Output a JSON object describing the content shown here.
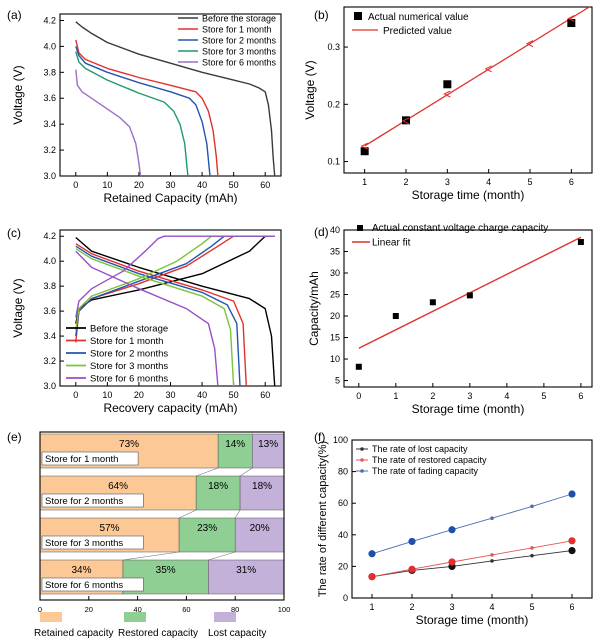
{
  "chart_data": [
    {
      "panel": "(a)",
      "type": "line",
      "xlabel": "Retained Capacity (mAh)",
      "ylabel": "Voltage (V)",
      "xlim": [
        -5,
        65
      ],
      "ylim": [
        3.0,
        4.25
      ],
      "xticks": [
        0,
        10,
        20,
        30,
        40,
        50,
        60
      ],
      "yticks": [
        3.0,
        3.2,
        3.4,
        3.6,
        3.8,
        4.0,
        4.2
      ],
      "legend_position": "top-right",
      "series": [
        {
          "name": "Before the storage",
          "color": "#3a3a3a",
          "points": [
            [
              0,
              4.19
            ],
            [
              2,
              4.15
            ],
            [
              5,
              4.1
            ],
            [
              10,
              4.03
            ],
            [
              20,
              3.94
            ],
            [
              30,
              3.87
            ],
            [
              40,
              3.8
            ],
            [
              50,
              3.74
            ],
            [
              55,
              3.71
            ],
            [
              58,
              3.68
            ],
            [
              60,
              3.65
            ],
            [
              61,
              3.55
            ],
            [
              62,
              3.35
            ],
            [
              62.5,
              3.15
            ],
            [
              63,
              3.0
            ]
          ]
        },
        {
          "name": "Store for 1 month",
          "color": "#e0312c",
          "points": [
            [
              0,
              4.05
            ],
            [
              1,
              3.95
            ],
            [
              3,
              3.9
            ],
            [
              10,
              3.83
            ],
            [
              20,
              3.76
            ],
            [
              30,
              3.7
            ],
            [
              38,
              3.65
            ],
            [
              40,
              3.6
            ],
            [
              42,
              3.5
            ],
            [
              43.5,
              3.35
            ],
            [
              44.5,
              3.15
            ],
            [
              45,
              3.0
            ]
          ]
        },
        {
          "name": "Store for 2 months",
          "color": "#2255b0",
          "points": [
            [
              0,
              4.0
            ],
            [
              1,
              3.93
            ],
            [
              3,
              3.87
            ],
            [
              10,
              3.8
            ],
            [
              20,
              3.72
            ],
            [
              30,
              3.65
            ],
            [
              36,
              3.6
            ],
            [
              38,
              3.55
            ],
            [
              40,
              3.42
            ],
            [
              41.5,
              3.25
            ],
            [
              42.5,
              3.0
            ]
          ]
        },
        {
          "name": "Store for 3 months",
          "color": "#1f9a6a",
          "points": [
            [
              0,
              3.96
            ],
            [
              1,
              3.88
            ],
            [
              3,
              3.83
            ],
            [
              10,
              3.74
            ],
            [
              20,
              3.64
            ],
            [
              28,
              3.57
            ],
            [
              31,
              3.5
            ],
            [
              33,
              3.4
            ],
            [
              34.5,
              3.25
            ],
            [
              35.5,
              3.0
            ]
          ]
        },
        {
          "name": "Store for 6 months",
          "color": "#9a6fc7",
          "points": [
            [
              0,
              3.82
            ],
            [
              0.5,
              3.7
            ],
            [
              2,
              3.65
            ],
            [
              8,
              3.55
            ],
            [
              14,
              3.45
            ],
            [
              17,
              3.38
            ],
            [
              19,
              3.25
            ],
            [
              20,
              3.1
            ],
            [
              20.5,
              3.0
            ]
          ]
        }
      ]
    },
    {
      "panel": "(b)",
      "type": "scatter",
      "xlabel": "Storage time (month)",
      "ylabel": "Voltage (V)",
      "xlim": [
        0.5,
        6.5
      ],
      "ylim": [
        0.08,
        0.37
      ],
      "xticks": [
        1,
        2,
        3,
        4,
        5,
        6
      ],
      "yticks": [
        0.1,
        0.2,
        0.3
      ],
      "legend_position": "top-left",
      "series": [
        {
          "name": "Actual numerical value",
          "color": "#000000",
          "x": [
            1,
            2,
            3,
            6
          ],
          "y": [
            0.118,
            0.172,
            0.235,
            0.342
          ]
        },
        {
          "name": "Predicted value",
          "color": "#e0312c",
          "x": [
            1,
            2,
            3,
            4,
            5,
            6
          ],
          "y": [
            0.127,
            0.171,
            0.218,
            0.262,
            0.306,
            0.35
          ]
        }
      ]
    },
    {
      "panel": "(c)",
      "type": "line",
      "xlabel": "Recovery capacity (mAh)",
      "ylabel": "Voltage (V)",
      "xlim": [
        -5,
        65
      ],
      "ylim": [
        3.0,
        4.25
      ],
      "xticks": [
        0,
        10,
        20,
        30,
        40,
        50,
        60
      ],
      "yticks": [
        3.0,
        3.2,
        3.4,
        3.6,
        3.8,
        4.0,
        4.2
      ],
      "legend_position": "bottom-left",
      "series": [
        {
          "name": "Before the storage",
          "color": "#000000",
          "dis": [
            [
              0,
              4.19
            ],
            [
              5,
              4.08
            ],
            [
              20,
              3.95
            ],
            [
              40,
              3.8
            ],
            [
              55,
              3.7
            ],
            [
              60,
              3.62
            ],
            [
              62,
              3.4
            ],
            [
              63,
              3.0
            ]
          ],
          "chg": [
            [
              0,
              3.5
            ],
            [
              1,
              3.62
            ],
            [
              5,
              3.69
            ],
            [
              20,
              3.77
            ],
            [
              40,
              3.9
            ],
            [
              55,
              4.08
            ],
            [
              60,
              4.2
            ],
            [
              63,
              4.2
            ]
          ]
        },
        {
          "name": "Store for 1 month",
          "color": "#e0312c",
          "dis": [
            [
              0,
              4.14
            ],
            [
              5,
              4.06
            ],
            [
              20,
              3.92
            ],
            [
              40,
              3.77
            ],
            [
              50,
              3.68
            ],
            [
              53,
              3.5
            ],
            [
              54,
              3.0
            ]
          ],
          "chg": [
            [
              0,
              3.35
            ],
            [
              1,
              3.6
            ],
            [
              5,
              3.7
            ],
            [
              20,
              3.82
            ],
            [
              35,
              3.96
            ],
            [
              45,
              4.12
            ],
            [
              50,
              4.2
            ],
            [
              63,
              4.2
            ]
          ]
        },
        {
          "name": "Store for 2 months",
          "color": "#2255b0",
          "dis": [
            [
              0,
              4.12
            ],
            [
              5,
              4.04
            ],
            [
              20,
              3.9
            ],
            [
              40,
              3.75
            ],
            [
              48,
              3.65
            ],
            [
              51,
              3.5
            ],
            [
              52,
              3.0
            ]
          ],
          "chg": [
            [
              0,
              3.4
            ],
            [
              1,
              3.6
            ],
            [
              5,
              3.7
            ],
            [
              20,
              3.84
            ],
            [
              35,
              3.98
            ],
            [
              43,
              4.12
            ],
            [
              47,
              4.2
            ],
            [
              63,
              4.2
            ]
          ]
        },
        {
          "name": "Store for 3 months",
          "color": "#7cc23a",
          "dis": [
            [
              0,
              4.1
            ],
            [
              5,
              4.02
            ],
            [
              20,
              3.88
            ],
            [
              40,
              3.72
            ],
            [
              47,
              3.62
            ],
            [
              49,
              3.45
            ],
            [
              50,
              3.0
            ]
          ],
          "chg": [
            [
              0,
              3.45
            ],
            [
              1,
              3.62
            ],
            [
              5,
              3.72
            ],
            [
              20,
              3.86
            ],
            [
              32,
              4.0
            ],
            [
              40,
              4.14
            ],
            [
              43,
              4.2
            ],
            [
              63,
              4.2
            ]
          ]
        },
        {
          "name": "Store for 6 months",
          "color": "#9a4fc7",
          "dis": [
            [
              0,
              4.08
            ],
            [
              5,
              3.95
            ],
            [
              20,
              3.78
            ],
            [
              35,
              3.62
            ],
            [
              42,
              3.5
            ],
            [
              44,
              3.3
            ],
            [
              45,
              3.0
            ]
          ],
          "chg": [
            [
              0,
              3.55
            ],
            [
              1,
              3.68
            ],
            [
              5,
              3.78
            ],
            [
              15,
              3.92
            ],
            [
              22,
              4.08
            ],
            [
              26,
              4.18
            ],
            [
              28,
              4.2
            ],
            [
              63,
              4.2
            ]
          ]
        }
      ]
    },
    {
      "panel": "(d)",
      "type": "scatter",
      "xlabel": "Storage time (month)",
      "ylabel": "Capacity/mAh",
      "xlim": [
        -0.4,
        6.3
      ],
      "ylim": [
        3.5,
        40
      ],
      "xticks": [
        0,
        1,
        2,
        3,
        4,
        5,
        6
      ],
      "yticks": [
        5,
        10,
        15,
        20,
        25,
        30,
        35,
        40
      ],
      "legend_position": "top-left",
      "series": [
        {
          "name": "Actual constant voltage charge capacity",
          "color": "#000000",
          "x": [
            0,
            1,
            2,
            3,
            6
          ],
          "y": [
            8.2,
            20.0,
            23.2,
            24.8,
            37.2
          ]
        },
        {
          "name": "Linear fit",
          "color": "#e0312c",
          "x": [
            0,
            6
          ],
          "y": [
            12.5,
            38.3
          ]
        }
      ]
    },
    {
      "panel": "(e)",
      "type": "bar",
      "orientation": "horizontal-stacked",
      "xlim": [
        0,
        100
      ],
      "xticks": [
        0,
        20,
        40,
        60,
        80,
        100
      ],
      "categories": [
        "Store for 1 month",
        "Store for 2 months",
        "Store for 3 months",
        "Store for 6 months"
      ],
      "series": [
        {
          "name": "Retained capacity",
          "color": "#fcc996",
          "values": [
            73,
            64,
            57,
            34
          ],
          "labels": [
            "73%",
            "64%",
            "57%",
            "34%"
          ]
        },
        {
          "name": "Restored capacity",
          "color": "#8fcf94",
          "values": [
            14,
            18,
            23,
            35
          ],
          "labels": [
            "14%",
            "18%",
            "23%",
            "35%"
          ]
        },
        {
          "name": "Lost capacity",
          "color": "#c3b1d9",
          "values": [
            13,
            18,
            20,
            31
          ],
          "labels": [
            "13%",
            "18%",
            "20%",
            "31%"
          ]
        }
      ],
      "legend_position": "bottom"
    },
    {
      "panel": "(f)",
      "type": "line",
      "xlabel": "Storage time (month)",
      "ylabel": "The rate of different capacity(%)",
      "xlim": [
        0.5,
        6.5
      ],
      "ylim": [
        0,
        100
      ],
      "xticks": [
        1,
        2,
        3,
        4,
        5,
        6
      ],
      "yticks": [
        0,
        20,
        40,
        60,
        80,
        100
      ],
      "legend_position": "top-left",
      "series": [
        {
          "name": "The rate of lost capacity",
          "color": "#333333",
          "x": [
            1,
            2,
            3,
            4,
            5,
            6
          ],
          "y": [
            13.5,
            17.5,
            20,
            23.5,
            26.8,
            30
          ],
          "big": [
            1,
            2,
            3,
            6
          ]
        },
        {
          "name": "The rate of restored capacity",
          "color": "#e85555",
          "x": [
            1,
            2,
            3,
            4,
            5,
            6
          ],
          "y": [
            13.5,
            18.2,
            22.8,
            27.3,
            31.7,
            36.2
          ],
          "big": [
            1,
            2,
            3,
            6
          ]
        },
        {
          "name": "The rate of fading capacity",
          "color": "#4a70b0",
          "x": [
            1,
            2,
            3,
            4,
            5,
            6
          ],
          "y": [
            28,
            35.8,
            43.2,
            50.5,
            58,
            65.8
          ],
          "big": [
            1,
            2,
            3,
            6
          ]
        }
      ],
      "big_marker_colors": [
        "#111111",
        "#e23030",
        "#1f4fa8"
      ]
    }
  ]
}
